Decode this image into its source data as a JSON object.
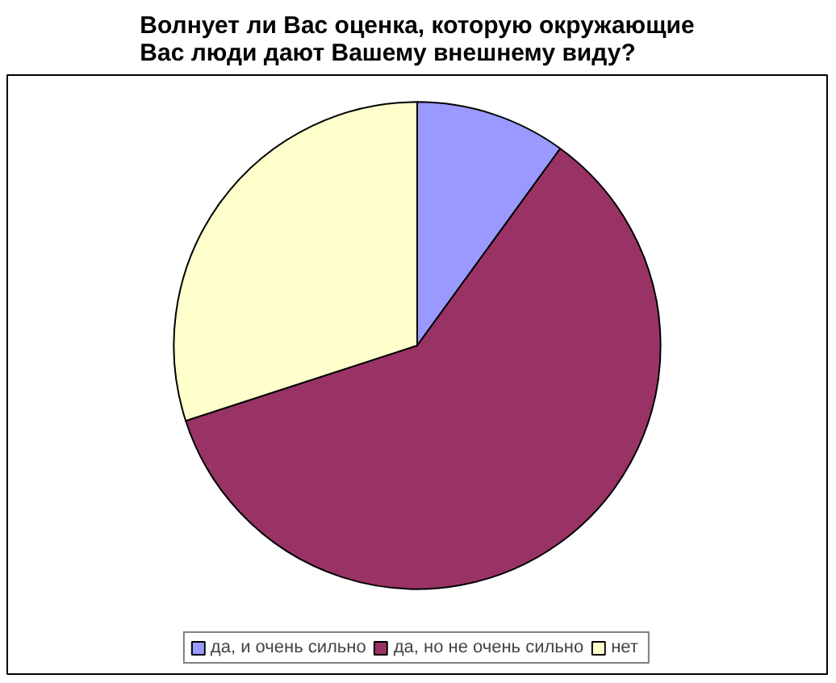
{
  "chart_data": {
    "type": "pie",
    "title": "Волнует ли Вас оценка, которую окружающие\nВас люди дают Вашему внешнему виду?",
    "categories": [
      "да, и очень сильно",
      "да, но не очень сильно",
      "нет"
    ],
    "values": [
      10,
      60,
      30
    ],
    "colors": [
      "#9999ff",
      "#993366",
      "#ffffcc"
    ],
    "legend": "bottom"
  }
}
